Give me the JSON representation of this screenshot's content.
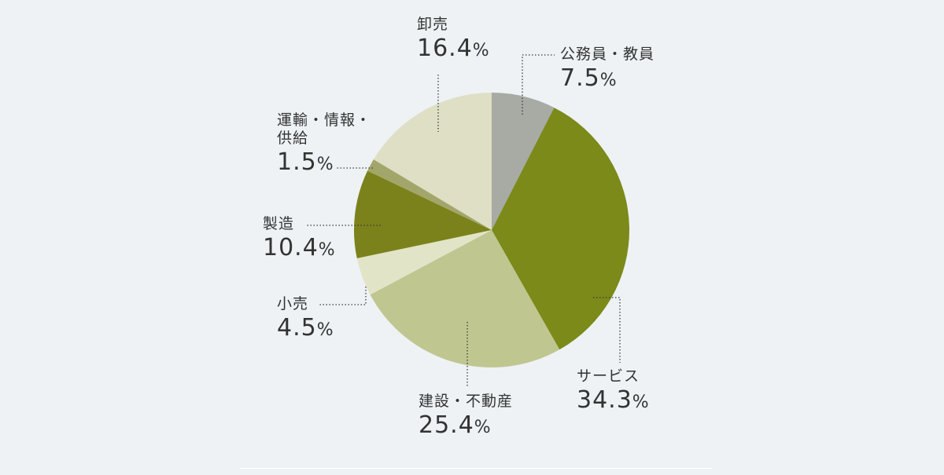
{
  "chart_data": {
    "type": "pie",
    "unit": "%",
    "slices": [
      {
        "label": "公務員・教員",
        "value": 7.5,
        "display": "7.5",
        "color": "#a8aaa4"
      },
      {
        "label": "サービス",
        "value": 34.3,
        "display": "34.3",
        "color": "#7b8a19"
      },
      {
        "label": "建設・不動産",
        "value": 25.4,
        "display": "25.4",
        "color": "#c0c690"
      },
      {
        "label": "小売",
        "value": 4.5,
        "display": "4.5",
        "color": "#e2e4c8"
      },
      {
        "label": "製造",
        "value": 10.4,
        "display": "10.4",
        "color": "#7c821b"
      },
      {
        "label": "運輸・情報・\n供給",
        "value": 1.5,
        "display": "1.5",
        "color": "#a3a66a"
      },
      {
        "label": "卸売",
        "value": 16.4,
        "display": "16.4",
        "color": "#dedfc5"
      }
    ]
  }
}
